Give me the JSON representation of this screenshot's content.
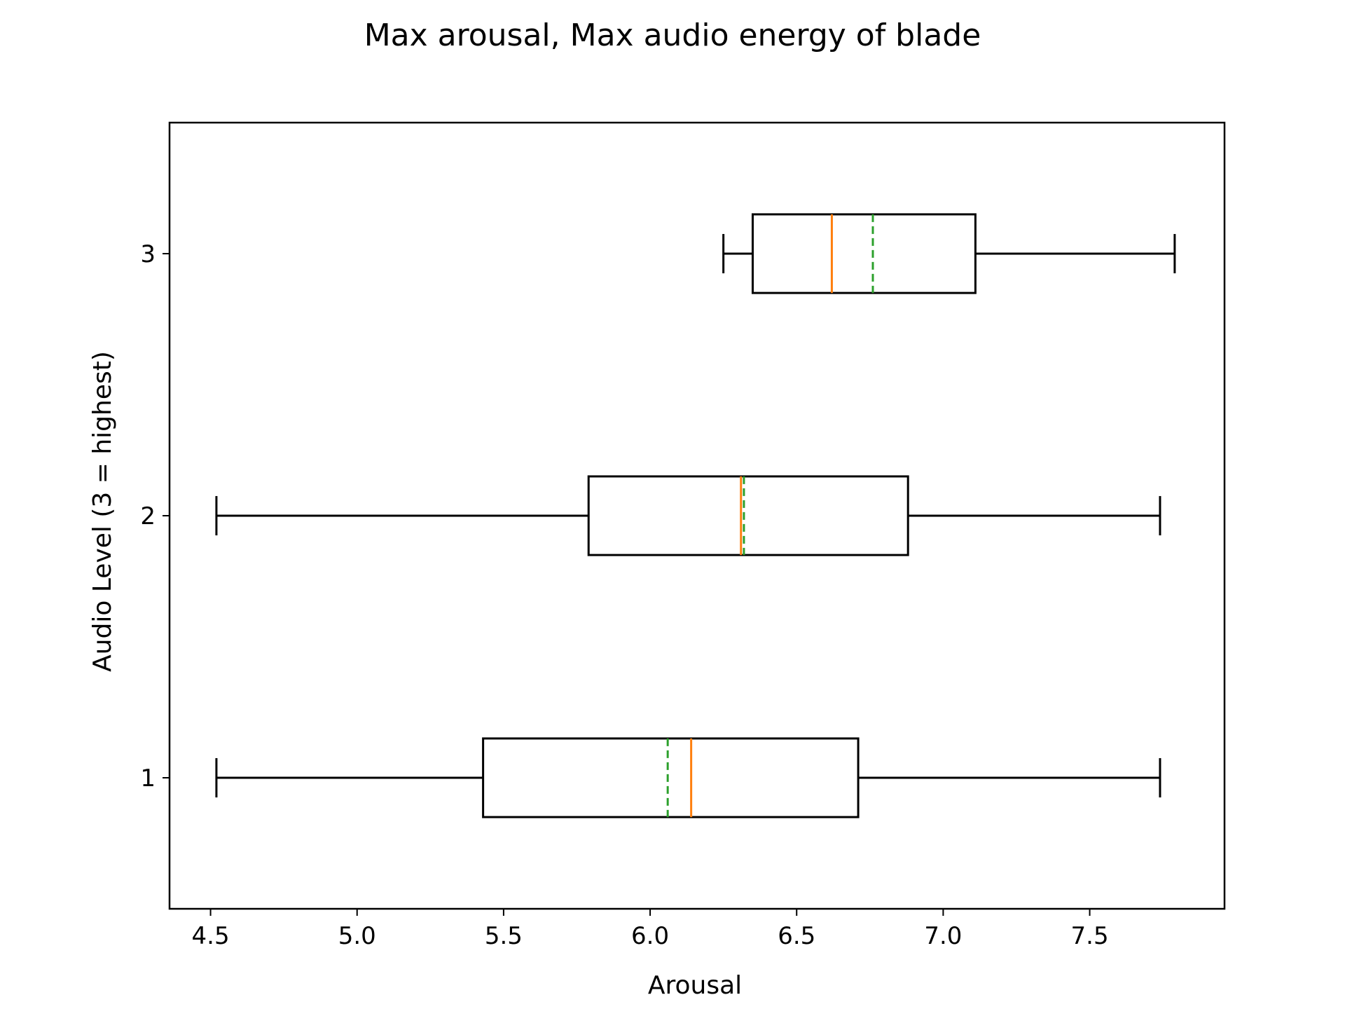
{
  "chart_data": {
    "type": "boxplot",
    "orientation": "horizontal",
    "title": "Max arousal, Max audio energy of blade",
    "xlabel": "Arousal",
    "ylabel": "Audio Level (3 = highest)",
    "xlim": [
      4.36,
      7.96
    ],
    "ylim": [
      0.5,
      3.5
    ],
    "xticks": [
      "4.5",
      "5.0",
      "5.5",
      "6.0",
      "6.5",
      "7.0",
      "7.5"
    ],
    "yticks": [
      "1",
      "2",
      "3"
    ],
    "grid": false,
    "legend": "none",
    "colors": {
      "box": "#000000",
      "median": "#ff7f0e",
      "mean": "#2ca02c"
    },
    "series": [
      {
        "level": 1,
        "whisker_low": 4.52,
        "q1": 5.43,
        "median": 6.14,
        "mean": 6.06,
        "q3": 6.71,
        "whisker_high": 7.74
      },
      {
        "level": 2,
        "whisker_low": 4.52,
        "q1": 5.79,
        "median": 6.31,
        "mean": 6.32,
        "q3": 6.88,
        "whisker_high": 7.74
      },
      {
        "level": 3,
        "whisker_low": 6.25,
        "q1": 6.35,
        "median": 6.62,
        "mean": 6.76,
        "q3": 7.11,
        "whisker_high": 7.79
      }
    ]
  }
}
